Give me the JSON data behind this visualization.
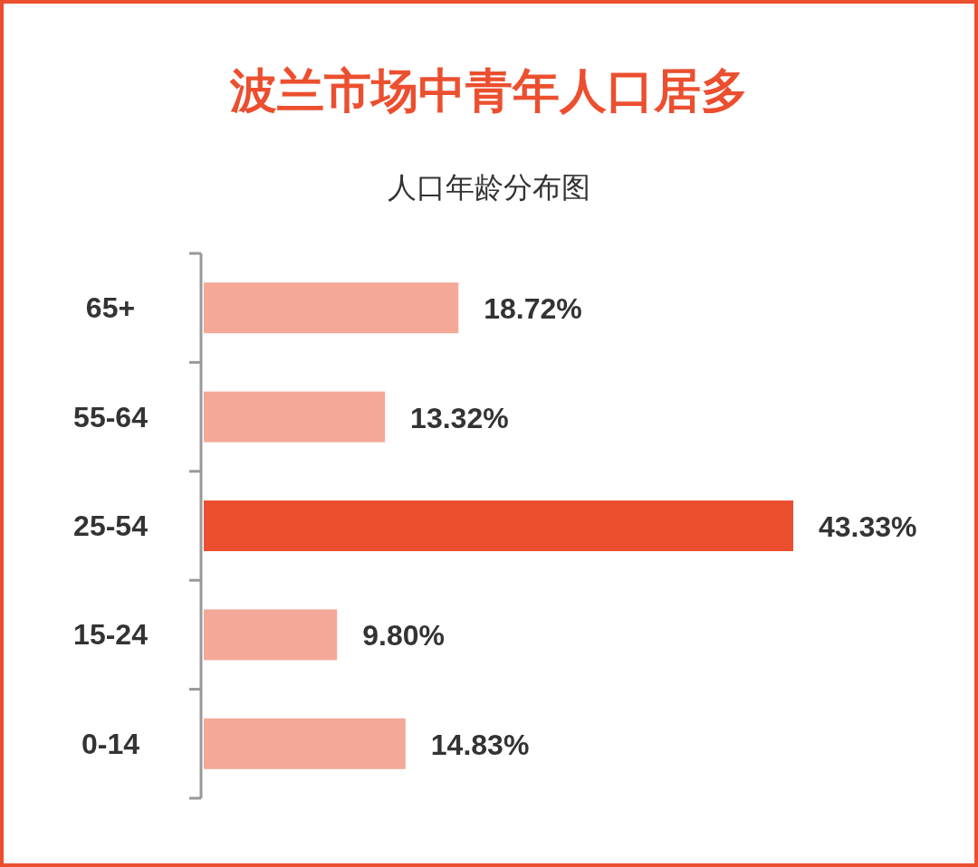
{
  "chart_data": {
    "type": "bar",
    "orientation": "horizontal",
    "title": "波兰市场中青年人口居多",
    "subtitle": "人口年龄分布图",
    "categories": [
      "65+",
      "55-64",
      "25-54",
      "15-24",
      "0-14"
    ],
    "values": [
      18.72,
      13.32,
      43.33,
      9.8,
      14.83
    ],
    "colors": [
      "#f4a898",
      "#f4a898",
      "#ec4f2f",
      "#f4a898",
      "#f4a898"
    ],
    "value_labels": [
      "18.72%",
      "13.32%",
      "43.33%",
      "9.80%",
      "14.83%"
    ]
  }
}
